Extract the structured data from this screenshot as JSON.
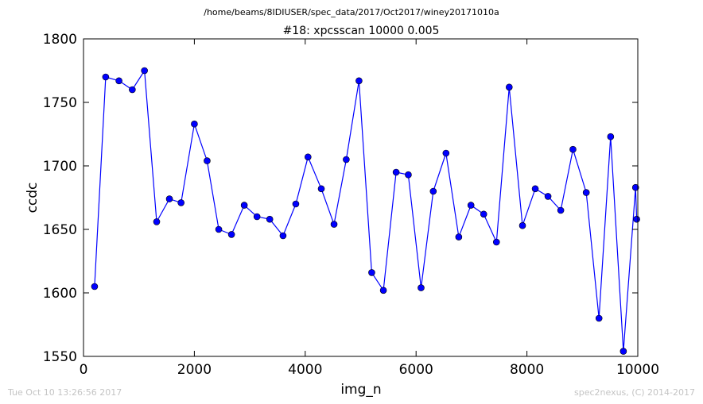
{
  "figure": {
    "suptitle": "/home/beams/8IDIUSER/spec_data/2017/Oct2017/winey20171010a",
    "timestamp": "Tue Oct 10 13:26:56 2017",
    "credit": "spec2nexus, (C) 2014-2017"
  },
  "chart_data": {
    "type": "line",
    "title": "#18: xpcsscan 10000 0.005",
    "xlabel": "img_n",
    "ylabel": "ccdc",
    "xlim": [
      0,
      10000
    ],
    "ylim": [
      1550,
      1800
    ],
    "xticks": [
      0,
      2000,
      4000,
      6000,
      8000,
      10000
    ],
    "yticks": [
      1550,
      1600,
      1650,
      1700,
      1750,
      1800
    ],
    "grid": false,
    "marker": "circle",
    "color": "#0000ff",
    "series": [
      {
        "x": [
          200,
          400,
          640,
          880,
          1100,
          1320,
          1550,
          1760,
          2000,
          2230,
          2440,
          2670,
          2900,
          3130,
          3360,
          3600,
          3830,
          4050,
          4290,
          4520,
          4740,
          4970,
          5200,
          5410,
          5640,
          5860,
          6090,
          6310,
          6540,
          6770,
          6990,
          7220,
          7450,
          7680,
          7920,
          8150,
          8380,
          8610,
          8830,
          9070,
          9300,
          9510,
          9740,
          9960,
          9980
        ],
        "y": [
          1605,
          1770,
          1767,
          1760,
          1775,
          1656,
          1674,
          1671,
          1733,
          1704,
          1650,
          1646,
          1669,
          1660,
          1658,
          1645,
          1670,
          1707,
          1682,
          1654,
          1705,
          1767,
          1616,
          1602,
          1695,
          1693,
          1604,
          1680,
          1710,
          1644,
          1669,
          1662,
          1640,
          1762,
          1653,
          1682,
          1676,
          1665,
          1713,
          1679,
          1580,
          1723,
          1554,
          1683,
          1658
        ]
      }
    ]
  }
}
